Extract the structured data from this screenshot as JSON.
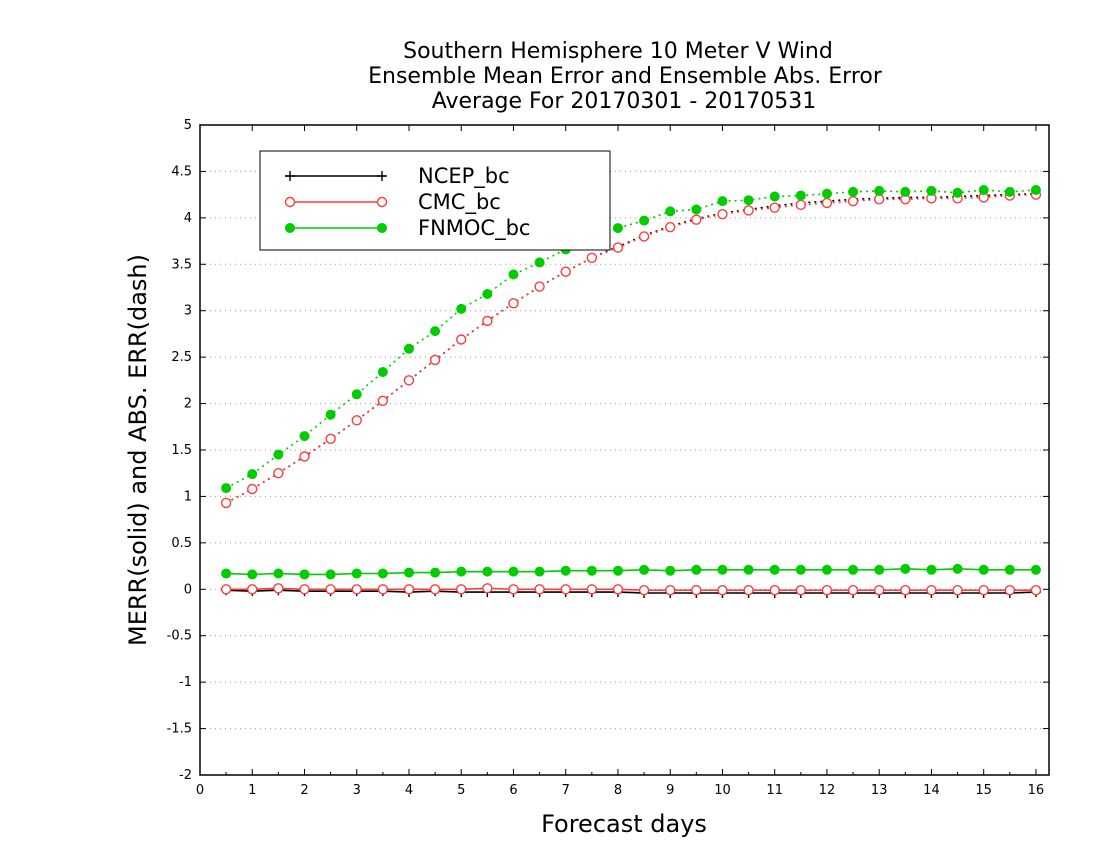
{
  "chart_data": {
    "type": "line",
    "title": [
      "Southern Hemisphere 10 Meter V Wind",
      "Ensemble Mean Error and Ensemble Abs. Error",
      "Average For 20170301 - 20170531"
    ],
    "xlabel": "Forecast days",
    "ylabel": "MERR(solid) and ABS. ERR(dash)",
    "xlim": [
      0,
      16.25
    ],
    "ylim": [
      -2,
      5
    ],
    "xticks": [
      0,
      1,
      2,
      3,
      4,
      5,
      6,
      7,
      8,
      9,
      10,
      11,
      12,
      13,
      14,
      15,
      16
    ],
    "yticks": [
      -2,
      -1.5,
      -1,
      -0.5,
      0,
      0.5,
      1,
      1.5,
      2,
      2.5,
      3,
      3.5,
      4,
      4.5,
      5
    ],
    "grid": "horizontal dotted",
    "legend_position": "top-left",
    "x": [
      0.5,
      1,
      1.5,
      2,
      2.5,
      3,
      3.5,
      4,
      4.5,
      5,
      5.5,
      6,
      6.5,
      7,
      7.5,
      8,
      8.5,
      9,
      9.5,
      10,
      10.5,
      11,
      11.5,
      12,
      12.5,
      13,
      13.5,
      14,
      14.5,
      15,
      15.5,
      16
    ],
    "series": [
      {
        "name": "NCEP_bc",
        "color": "#000000",
        "marker": "plus",
        "merr": [
          -0.01,
          -0.02,
          -0.01,
          -0.02,
          -0.02,
          -0.02,
          -0.02,
          -0.03,
          -0.02,
          -0.03,
          -0.03,
          -0.03,
          -0.03,
          -0.03,
          -0.03,
          -0.03,
          -0.04,
          -0.04,
          -0.04,
          -0.04,
          -0.04,
          -0.04,
          -0.04,
          -0.04,
          -0.04,
          -0.04,
          -0.04,
          -0.04,
          -0.04,
          -0.04,
          -0.04,
          -0.03
        ],
        "abs_err": [
          0.93,
          1.08,
          1.25,
          1.43,
          1.62,
          1.82,
          2.03,
          2.25,
          2.47,
          2.69,
          2.89,
          3.08,
          3.26,
          3.42,
          3.57,
          3.69,
          3.81,
          3.91,
          3.99,
          4.05,
          4.09,
          4.13,
          4.16,
          4.18,
          4.2,
          4.21,
          4.22,
          4.22,
          4.23,
          4.24,
          4.25,
          4.26
        ]
      },
      {
        "name": "CMC_bc",
        "color": "#ff3b3b",
        "marker": "open-circle",
        "merr": [
          0.0,
          0.0,
          0.01,
          0.0,
          0.0,
          0.0,
          0.0,
          0.0,
          0.0,
          0.0,
          0.01,
          0.0,
          0.0,
          0.0,
          0.0,
          0.0,
          -0.01,
          -0.01,
          -0.01,
          -0.01,
          -0.01,
          -0.01,
          -0.01,
          -0.01,
          -0.01,
          -0.01,
          -0.01,
          -0.01,
          -0.01,
          -0.01,
          -0.01,
          -0.01
        ],
        "abs_err": [
          0.93,
          1.08,
          1.25,
          1.43,
          1.62,
          1.82,
          2.03,
          2.25,
          2.47,
          2.69,
          2.89,
          3.08,
          3.26,
          3.42,
          3.57,
          3.68,
          3.8,
          3.9,
          3.98,
          4.04,
          4.08,
          4.11,
          4.14,
          4.16,
          4.18,
          4.2,
          4.2,
          4.21,
          4.21,
          4.22,
          4.24,
          4.25
        ]
      },
      {
        "name": "FNMOC_bc",
        "color": "#00cc00",
        "marker": "filled-circle",
        "merr": [
          0.17,
          0.16,
          0.17,
          0.16,
          0.16,
          0.17,
          0.17,
          0.18,
          0.18,
          0.19,
          0.19,
          0.19,
          0.19,
          0.2,
          0.2,
          0.2,
          0.21,
          0.2,
          0.21,
          0.21,
          0.21,
          0.21,
          0.21,
          0.21,
          0.21,
          0.21,
          0.22,
          0.21,
          0.22,
          0.21,
          0.21,
          0.21
        ],
        "abs_err": [
          1.09,
          1.24,
          1.45,
          1.65,
          1.88,
          2.1,
          2.34,
          2.59,
          2.78,
          3.02,
          3.18,
          3.39,
          3.52,
          3.66,
          3.79,
          3.89,
          3.97,
          4.07,
          4.09,
          4.18,
          4.19,
          4.23,
          4.24,
          4.26,
          4.28,
          4.29,
          4.28,
          4.29,
          4.27,
          4.3,
          4.28,
          4.3
        ]
      }
    ]
  }
}
